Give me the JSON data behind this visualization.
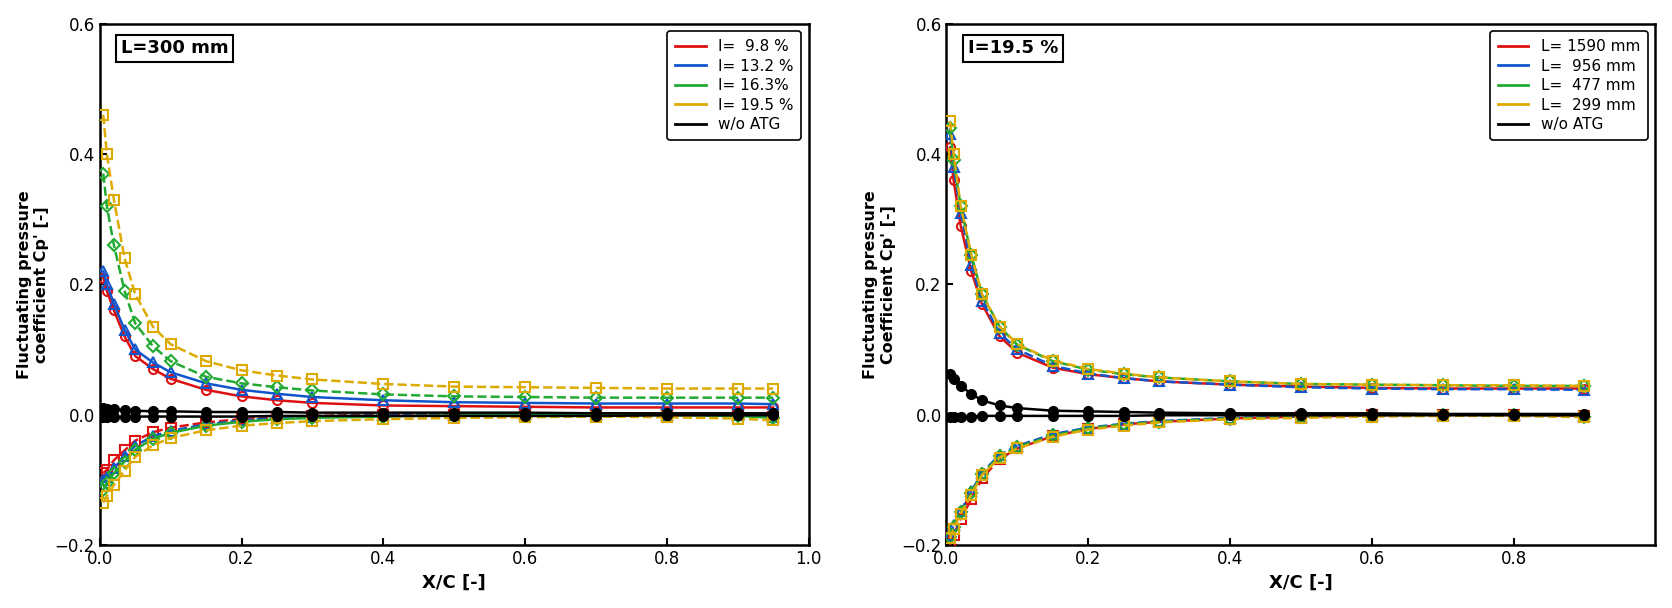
{
  "left_plot": {
    "title": "L=300 mm",
    "ylabel1": "Fluctuating pressure\ncoefficient Cp' [-]",
    "xlabel": "X/C [-]",
    "xlim": [
      0,
      1.0
    ],
    "ylim": [
      -0.2,
      0.6
    ],
    "yticks": [
      -0.2,
      0.0,
      0.2,
      0.4,
      0.6
    ],
    "xticks": [
      0.0,
      0.2,
      0.4,
      0.6,
      0.8,
      1.0
    ],
    "series": [
      {
        "label": "I=  9.8 %",
        "color": "#dd1111",
        "upper_x": [
          0.005,
          0.01,
          0.02,
          0.035,
          0.05,
          0.075,
          0.1,
          0.15,
          0.2,
          0.25,
          0.3,
          0.4,
          0.5,
          0.6,
          0.7,
          0.8,
          0.9,
          0.95
        ],
        "upper_y": [
          0.21,
          0.19,
          0.16,
          0.12,
          0.09,
          0.07,
          0.055,
          0.038,
          0.028,
          0.022,
          0.018,
          0.014,
          0.013,
          0.012,
          0.011,
          0.011,
          0.011,
          0.011
        ],
        "upper_marker": "o",
        "upper_linestyle": "solid",
        "lower_x": [
          0.005,
          0.01,
          0.02,
          0.035,
          0.05,
          0.075,
          0.1,
          0.15,
          0.2,
          0.25,
          0.3,
          0.4,
          0.5,
          0.6,
          0.7,
          0.8,
          0.9,
          0.95
        ],
        "lower_y": [
          -0.09,
          -0.085,
          -0.07,
          -0.055,
          -0.04,
          -0.027,
          -0.02,
          -0.012,
          -0.007,
          -0.004,
          -0.002,
          0.0,
          0.0,
          0.001,
          0.001,
          0.0,
          -0.001,
          -0.003
        ],
        "lower_marker": "s",
        "lower_linestyle": "dashed"
      },
      {
        "label": "I= 13.2 %",
        "color": "#1155cc",
        "upper_x": [
          0.005,
          0.01,
          0.02,
          0.035,
          0.05,
          0.075,
          0.1,
          0.15,
          0.2,
          0.25,
          0.3,
          0.4,
          0.5,
          0.6,
          0.7,
          0.8,
          0.9,
          0.95
        ],
        "upper_y": [
          0.22,
          0.2,
          0.17,
          0.13,
          0.1,
          0.08,
          0.065,
          0.048,
          0.038,
          0.032,
          0.027,
          0.022,
          0.019,
          0.018,
          0.017,
          0.017,
          0.017,
          0.016
        ],
        "upper_marker": "^",
        "upper_linestyle": "solid",
        "lower_x": [
          0.005,
          0.01,
          0.02,
          0.035,
          0.05,
          0.075,
          0.1,
          0.15,
          0.2,
          0.25,
          0.3,
          0.4,
          0.5,
          0.6,
          0.7,
          0.8,
          0.9,
          0.95
        ],
        "lower_y": [
          -0.1,
          -0.095,
          -0.082,
          -0.064,
          -0.048,
          -0.033,
          -0.025,
          -0.015,
          -0.009,
          -0.005,
          -0.003,
          -0.001,
          0.0,
          0.001,
          0.001,
          0.0,
          -0.001,
          -0.004
        ],
        "lower_marker": "^",
        "lower_linestyle": "dashed"
      },
      {
        "label": "I= 16.3%",
        "color": "#22aa33",
        "upper_x": [
          0.005,
          0.01,
          0.02,
          0.035,
          0.05,
          0.075,
          0.1,
          0.15,
          0.2,
          0.25,
          0.3,
          0.4,
          0.5,
          0.6,
          0.7,
          0.8,
          0.9,
          0.95
        ],
        "upper_y": [
          0.37,
          0.32,
          0.26,
          0.19,
          0.14,
          0.105,
          0.082,
          0.058,
          0.048,
          0.042,
          0.037,
          0.031,
          0.028,
          0.027,
          0.026,
          0.026,
          0.026,
          0.026
        ],
        "upper_marker": "D",
        "upper_linestyle": "dashed",
        "lower_x": [
          0.005,
          0.01,
          0.02,
          0.035,
          0.05,
          0.075,
          0.1,
          0.15,
          0.2,
          0.25,
          0.3,
          0.4,
          0.5,
          0.6,
          0.7,
          0.8,
          0.9,
          0.95
        ],
        "lower_y": [
          -0.115,
          -0.105,
          -0.09,
          -0.072,
          -0.054,
          -0.037,
          -0.028,
          -0.017,
          -0.011,
          -0.007,
          -0.005,
          -0.003,
          -0.001,
          0.0,
          0.0,
          -0.001,
          -0.002,
          -0.005
        ],
        "lower_marker": "D",
        "lower_linestyle": "solid"
      },
      {
        "label": "I= 19.5 %",
        "color": "#ddaa00",
        "upper_x": [
          0.005,
          0.01,
          0.02,
          0.035,
          0.05,
          0.075,
          0.1,
          0.15,
          0.2,
          0.25,
          0.3,
          0.4,
          0.5,
          0.6,
          0.7,
          0.8,
          0.9,
          0.95
        ],
        "upper_y": [
          0.46,
          0.4,
          0.33,
          0.24,
          0.185,
          0.135,
          0.108,
          0.082,
          0.068,
          0.06,
          0.054,
          0.047,
          0.043,
          0.042,
          0.041,
          0.04,
          0.04,
          0.04
        ],
        "upper_marker": "s",
        "upper_linestyle": "dashed",
        "lower_x": [
          0.005,
          0.01,
          0.02,
          0.035,
          0.05,
          0.075,
          0.1,
          0.15,
          0.2,
          0.25,
          0.3,
          0.4,
          0.5,
          0.6,
          0.7,
          0.8,
          0.9,
          0.95
        ],
        "lower_y": [
          -0.135,
          -0.125,
          -0.108,
          -0.086,
          -0.065,
          -0.047,
          -0.036,
          -0.024,
          -0.017,
          -0.013,
          -0.01,
          -0.007,
          -0.005,
          -0.004,
          -0.003,
          -0.004,
          -0.006,
          -0.009
        ],
        "lower_marker": "s",
        "lower_linestyle": "dashed"
      },
      {
        "label": "w/o ATG",
        "color": "#000000",
        "upper_x": [
          0.005,
          0.01,
          0.02,
          0.035,
          0.05,
          0.075,
          0.1,
          0.15,
          0.2,
          0.25,
          0.3,
          0.4,
          0.5,
          0.6,
          0.7,
          0.8,
          0.9,
          0.95
        ],
        "upper_y": [
          0.01,
          0.009,
          0.008,
          0.007,
          0.006,
          0.005,
          0.005,
          0.004,
          0.004,
          0.004,
          0.003,
          0.003,
          0.003,
          0.003,
          0.002,
          0.002,
          0.002,
          0.002
        ],
        "upper_marker": "o",
        "upper_linestyle": "solid",
        "lower_x": [
          0.005,
          0.01,
          0.02,
          0.035,
          0.05,
          0.075,
          0.1,
          0.15,
          0.2,
          0.25,
          0.3,
          0.4,
          0.5,
          0.6,
          0.7,
          0.8,
          0.9,
          0.95
        ],
        "lower_y": [
          -0.004,
          -0.004,
          -0.004,
          -0.003,
          -0.003,
          -0.003,
          -0.003,
          -0.003,
          -0.003,
          -0.002,
          -0.002,
          -0.002,
          -0.002,
          -0.002,
          -0.002,
          -0.001,
          -0.001,
          -0.001
        ],
        "lower_marker": "o",
        "lower_linestyle": "solid"
      }
    ]
  },
  "right_plot": {
    "title": "I=19.5 %",
    "ylabel1": "Fluctuating pressure\nCoefficient Cp' [-]",
    "xlabel": "X/C [-]",
    "xlim": [
      0,
      1.0
    ],
    "ylim": [
      -0.2,
      0.6
    ],
    "yticks": [
      -0.2,
      0.0,
      0.2,
      0.4,
      0.6
    ],
    "xticks": [
      0.0,
      0.2,
      0.4,
      0.6,
      0.8
    ],
    "series": [
      {
        "label": "L= 1590 mm",
        "color": "#dd1111",
        "upper_x": [
          0.005,
          0.01,
          0.02,
          0.035,
          0.05,
          0.075,
          0.1,
          0.15,
          0.2,
          0.25,
          0.3,
          0.4,
          0.5,
          0.6,
          0.7,
          0.8,
          0.9
        ],
        "upper_y": [
          0.41,
          0.36,
          0.29,
          0.22,
          0.17,
          0.12,
          0.095,
          0.072,
          0.062,
          0.056,
          0.051,
          0.046,
          0.043,
          0.041,
          0.04,
          0.04,
          0.04
        ],
        "upper_marker": "o",
        "upper_linestyle": "solid",
        "lower_x": [
          0.005,
          0.01,
          0.02,
          0.035,
          0.05,
          0.075,
          0.1,
          0.15,
          0.2,
          0.25,
          0.3,
          0.4,
          0.5,
          0.6,
          0.7,
          0.8,
          0.9
        ],
        "lower_y": [
          -0.2,
          -0.185,
          -0.16,
          -0.13,
          -0.098,
          -0.068,
          -0.052,
          -0.033,
          -0.022,
          -0.015,
          -0.011,
          -0.006,
          -0.003,
          -0.001,
          0.0,
          0.0,
          -0.002
        ],
        "lower_marker": "s",
        "lower_linestyle": "dashed"
      },
      {
        "label": "L=  956 mm",
        "color": "#1155cc",
        "upper_x": [
          0.005,
          0.01,
          0.02,
          0.035,
          0.05,
          0.075,
          0.1,
          0.15,
          0.2,
          0.25,
          0.3,
          0.4,
          0.5,
          0.6,
          0.7,
          0.8,
          0.9
        ],
        "upper_y": [
          0.43,
          0.38,
          0.31,
          0.23,
          0.175,
          0.125,
          0.1,
          0.075,
          0.063,
          0.056,
          0.051,
          0.046,
          0.042,
          0.04,
          0.039,
          0.039,
          0.038
        ],
        "upper_marker": "^",
        "upper_linestyle": "dashed",
        "lower_x": [
          0.005,
          0.01,
          0.02,
          0.035,
          0.05,
          0.075,
          0.1,
          0.15,
          0.2,
          0.25,
          0.3,
          0.4,
          0.5,
          0.6,
          0.7,
          0.8,
          0.9
        ],
        "lower_y": [
          -0.185,
          -0.17,
          -0.148,
          -0.118,
          -0.089,
          -0.062,
          -0.048,
          -0.03,
          -0.02,
          -0.014,
          -0.01,
          -0.005,
          -0.003,
          -0.001,
          0.0,
          0.0,
          -0.002
        ],
        "lower_marker": "^",
        "lower_linestyle": "dashed"
      },
      {
        "label": "L=  477 mm",
        "color": "#22aa33",
        "upper_x": [
          0.005,
          0.01,
          0.02,
          0.035,
          0.05,
          0.075,
          0.1,
          0.15,
          0.2,
          0.25,
          0.3,
          0.4,
          0.5,
          0.6,
          0.7,
          0.8,
          0.9
        ],
        "upper_y": [
          0.44,
          0.39,
          0.32,
          0.245,
          0.185,
          0.135,
          0.107,
          0.082,
          0.069,
          0.062,
          0.057,
          0.051,
          0.047,
          0.046,
          0.045,
          0.044,
          0.044
        ],
        "upper_marker": "D",
        "upper_linestyle": "dashed",
        "lower_x": [
          0.005,
          0.01,
          0.02,
          0.035,
          0.05,
          0.075,
          0.1,
          0.15,
          0.2,
          0.25,
          0.3,
          0.4,
          0.5,
          0.6,
          0.7,
          0.8,
          0.9
        ],
        "lower_y": [
          -0.188,
          -0.173,
          -0.15,
          -0.121,
          -0.091,
          -0.064,
          -0.05,
          -0.032,
          -0.021,
          -0.015,
          -0.011,
          -0.006,
          -0.004,
          -0.002,
          -0.001,
          -0.001,
          -0.003
        ],
        "lower_marker": "D",
        "lower_linestyle": "dashed"
      },
      {
        "label": "L=  299 mm",
        "color": "#ddaa00",
        "upper_x": [
          0.005,
          0.01,
          0.02,
          0.035,
          0.05,
          0.075,
          0.1,
          0.15,
          0.2,
          0.25,
          0.3,
          0.4,
          0.5,
          0.6,
          0.7,
          0.8,
          0.9
        ],
        "upper_y": [
          0.45,
          0.4,
          0.32,
          0.245,
          0.185,
          0.135,
          0.108,
          0.083,
          0.07,
          0.063,
          0.057,
          0.051,
          0.047,
          0.046,
          0.045,
          0.045,
          0.044
        ],
        "upper_marker": "s",
        "upper_linestyle": "dashed",
        "lower_x": [
          0.005,
          0.01,
          0.02,
          0.035,
          0.05,
          0.075,
          0.1,
          0.15,
          0.2,
          0.25,
          0.3,
          0.4,
          0.5,
          0.6,
          0.7,
          0.8,
          0.9
        ],
        "lower_y": [
          -0.19,
          -0.175,
          -0.152,
          -0.123,
          -0.093,
          -0.066,
          -0.052,
          -0.034,
          -0.023,
          -0.017,
          -0.012,
          -0.007,
          -0.005,
          -0.003,
          -0.002,
          -0.002,
          -0.004
        ],
        "lower_marker": "s",
        "lower_linestyle": "dashed"
      },
      {
        "label": "w/o ATG",
        "color": "#000000",
        "upper_x": [
          0.005,
          0.01,
          0.02,
          0.035,
          0.05,
          0.075,
          0.1,
          0.15,
          0.2,
          0.25,
          0.3,
          0.4,
          0.5,
          0.6,
          0.7,
          0.8,
          0.9
        ],
        "upper_y": [
          0.062,
          0.055,
          0.044,
          0.032,
          0.022,
          0.014,
          0.01,
          0.006,
          0.005,
          0.004,
          0.003,
          0.002,
          0.002,
          0.002,
          0.001,
          0.001,
          0.001
        ],
        "upper_marker": "o",
        "upper_linestyle": "solid",
        "lower_x": [
          0.005,
          0.01,
          0.02,
          0.035,
          0.05,
          0.075,
          0.1,
          0.15,
          0.2,
          0.25,
          0.3,
          0.4,
          0.5,
          0.6,
          0.7,
          0.8,
          0.9
        ],
        "lower_y": [
          -0.004,
          -0.004,
          -0.003,
          -0.003,
          -0.002,
          -0.002,
          -0.002,
          -0.002,
          -0.002,
          -0.002,
          -0.001,
          -0.001,
          -0.001,
          -0.001,
          -0.001,
          -0.001,
          -0.001
        ],
        "lower_marker": "o",
        "lower_linestyle": "solid"
      }
    ]
  }
}
